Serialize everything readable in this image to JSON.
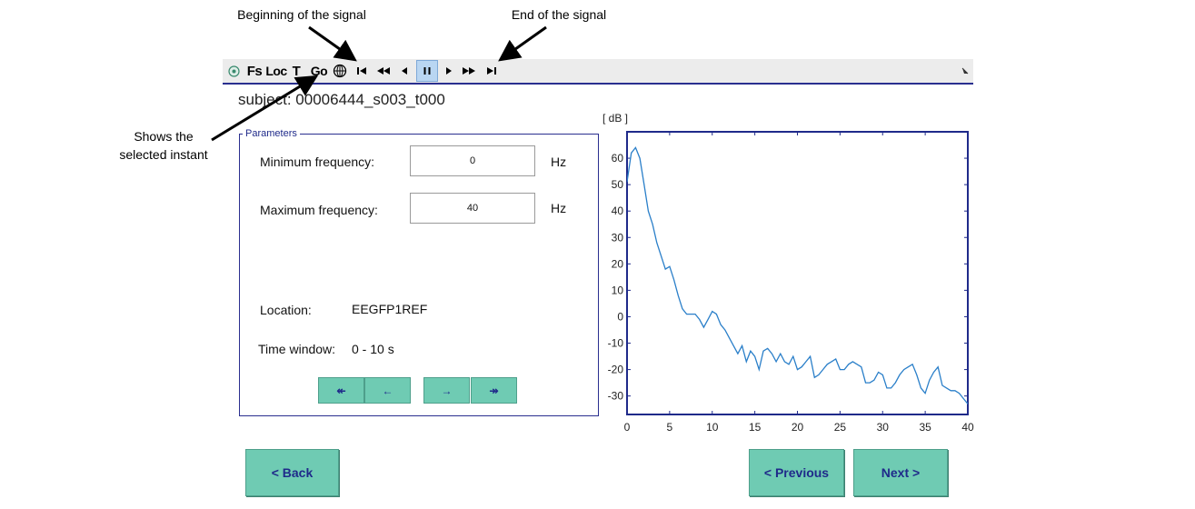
{
  "annotations": {
    "beginning": "Beginning of the signal",
    "end": "End of the signal",
    "selected_line1": "Shows the",
    "selected_line2": "selected instant"
  },
  "toolbar": {
    "fs": "Fs",
    "loc": "Loc",
    "t": "T",
    "go": "Go"
  },
  "subject": "subject: 00006444_s003_t000",
  "params": {
    "title": "Parameters",
    "min_label": "Minimum frequency:",
    "min_value": "0",
    "min_unit": "Hz",
    "max_label": "Maximum frequency:",
    "max_value": "40",
    "max_unit": "Hz",
    "location_label": "Location:",
    "location_value": "EEGFP1REF",
    "window_label": "Time window:",
    "window_value": "0 - 10 s",
    "nav": [
      "↞",
      "←",
      "→",
      "↠"
    ]
  },
  "buttons": {
    "back": "<  Back",
    "previous": "< Previous",
    "next": "Next  >"
  },
  "chart_data": {
    "type": "line",
    "ylabel": "[ dB ]",
    "xlabel": "",
    "xlim": [
      0,
      40
    ],
    "ylim": [
      -37,
      70
    ],
    "x_ticks": [
      0,
      5,
      10,
      15,
      20,
      25,
      30,
      35,
      40
    ],
    "y_ticks": [
      -30,
      -20,
      -10,
      0,
      10,
      20,
      30,
      40,
      50,
      60
    ],
    "grid": false,
    "color": "#2a7fc9",
    "series": [
      {
        "x": [
          0,
          0.5,
          1,
          1.5,
          2,
          2.5,
          3,
          3.5,
          4,
          4.5,
          5,
          5.5,
          6,
          6.5,
          7,
          7.5,
          8,
          8.5,
          9,
          9.5,
          10,
          10.5,
          11,
          11.5,
          12,
          12.5,
          13,
          13.5,
          14,
          14.5,
          15,
          15.5,
          16,
          16.5,
          17,
          17.5,
          18,
          18.5,
          19,
          19.5,
          20,
          20.5,
          21,
          21.5,
          22,
          22.5,
          23,
          23.5,
          24,
          24.5,
          25,
          25.5,
          26,
          26.5,
          27,
          27.5,
          28,
          28.5,
          29,
          29.5,
          30,
          30.5,
          31,
          31.5,
          32,
          32.5,
          33,
          33.5,
          34,
          34.5,
          35,
          35.5,
          36,
          36.5,
          37,
          37.5,
          38,
          38.5,
          39,
          39.5,
          40
        ],
        "y": [
          51,
          62,
          64,
          60,
          50,
          40,
          35,
          28,
          23,
          18,
          19,
          14,
          8,
          3,
          1,
          1,
          1,
          -1,
          -4,
          -1,
          2,
          1,
          -3,
          -5,
          -8,
          -11,
          -14,
          -11,
          -17,
          -13,
          -15,
          -20,
          -13,
          -12,
          -14,
          -17,
          -14,
          -17,
          -18,
          -15,
          -20,
          -19,
          -17,
          -15,
          -23,
          -22,
          -20,
          -18,
          -17,
          -16,
          -20,
          -20,
          -18,
          -17,
          -18,
          -19,
          -25,
          -25,
          -24,
          -21,
          -22,
          -27,
          -27,
          -25,
          -22,
          -20,
          -19,
          -18,
          -22,
          -27,
          -29,
          -24,
          -21,
          -19,
          -26,
          -27,
          -28,
          -28,
          -29,
          -31,
          -33
        ]
      }
    ]
  }
}
